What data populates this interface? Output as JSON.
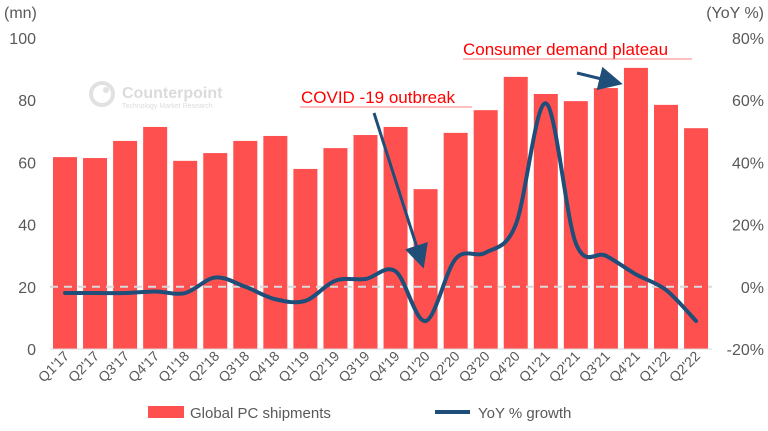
{
  "chart_data": {
    "type": "bar+line",
    "categories": [
      "Q1'17",
      "Q2'17",
      "Q3'17",
      "Q4'17",
      "Q1'18",
      "Q2'18",
      "Q3'18",
      "Q4'18",
      "Q1'19",
      "Q2'19",
      "Q3'19",
      "Q4'19",
      "Q1'20",
      "Q2'20",
      "Q3'20",
      "Q4'20",
      "Q1'21",
      "Q2'21",
      "Q3'21",
      "Q4'21",
      "Q1'22",
      "Q2'22"
    ],
    "series": [
      {
        "name": "Global PC shipments",
        "type": "bar",
        "axis": "left",
        "color": "#ff5050",
        "values": [
          61.7,
          61.4,
          66.9,
          71.4,
          60.5,
          63.0,
          66.9,
          68.5,
          57.9,
          64.6,
          68.8,
          71.4,
          51.4,
          69.5,
          76.8,
          87.5,
          82.0,
          79.7,
          83.9,
          90.4,
          78.5,
          71.0
        ]
      },
      {
        "name": "YoY % growth",
        "type": "line",
        "axis": "right",
        "color": "#1f4e79",
        "values": [
          -2,
          -2,
          -2,
          -1.5,
          -2,
          3,
          0,
          -4,
          -4.5,
          2,
          2.5,
          5,
          -11,
          9,
          11,
          20,
          59,
          14,
          10,
          4,
          -1,
          -11
        ]
      }
    ],
    "left_axis": {
      "label": "(mn)",
      "range": [
        0,
        100
      ],
      "ticks": [
        "0",
        "20",
        "40",
        "60",
        "80",
        "100"
      ]
    },
    "right_axis": {
      "label": "(YoY %)",
      "range": [
        -20,
        80
      ],
      "ticks": [
        "-20%",
        "0%",
        "20%",
        "40%",
        "60%",
        "80%"
      ]
    },
    "annotations": [
      {
        "text": "COVID -19 outbreak",
        "target": "Q1'20"
      },
      {
        "text": "Consumer demand plateau",
        "target": "Q4'21"
      }
    ],
    "watermark": {
      "name": "Counterpoint",
      "tagline": "Technology Market Research"
    },
    "legend": "bottom",
    "grid": false
  }
}
